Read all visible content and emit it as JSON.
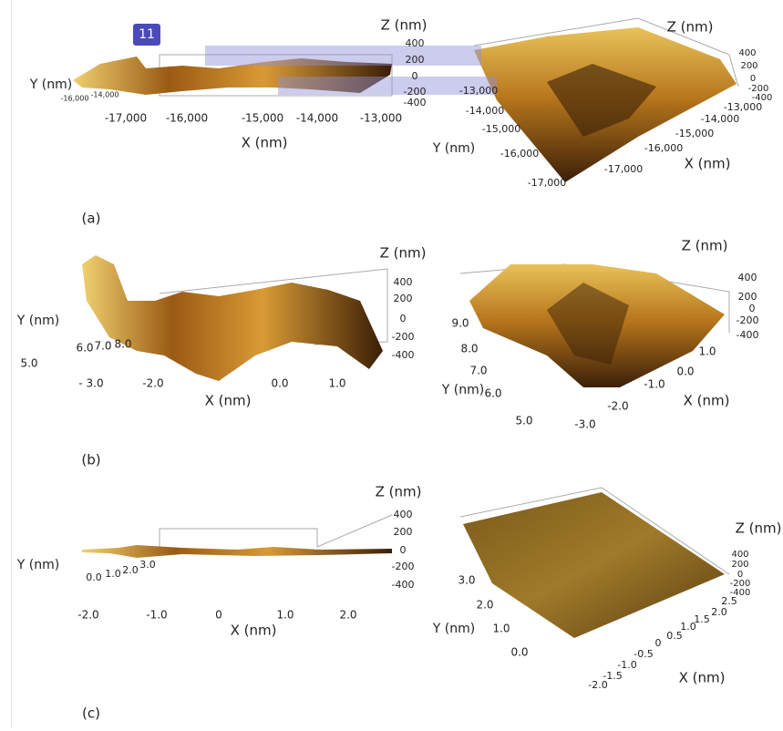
{
  "badge": "11",
  "panels": [
    {
      "label": "(a)",
      "plots": [
        {
          "z_title": "Z (nm)",
          "z_ticks": [
            "400",
            "200",
            "0",
            "-200",
            "-400"
          ],
          "x_title": "X (nm)",
          "x_ticks": [
            "-17,000",
            "-16,000",
            "-15,000",
            "-14,000",
            "-13,000"
          ],
          "y_title": "Y (nm)",
          "y_ticks": [
            "-16,000",
            "-14,000"
          ]
        },
        {
          "z_title": "Z (nm)",
          "z_ticks": [
            "400",
            "200",
            "0",
            "-200",
            "-400"
          ],
          "x_title": "X (nm)",
          "x_ticks": [
            "-13,000",
            "-14,000",
            "-15,000",
            "-16,000",
            "-17,000"
          ],
          "y_title": "Y (nm)",
          "y_ticks": [
            "-13,000",
            "-14,000",
            "-15,000",
            "-16,000",
            "-17,000"
          ]
        }
      ]
    },
    {
      "label": "(b)",
      "plots": [
        {
          "z_title": "Z (nm)",
          "z_ticks": [
            "400",
            "200",
            "0",
            "-200",
            "-400"
          ],
          "x_title": "X (nm)",
          "x_ticks": [
            "- 3.0",
            "-2.0",
            "0.0",
            "1.0"
          ],
          "y_title": "Y (nm)",
          "y_ticks": [
            "5.0",
            "6.0",
            "7.0",
            "8.0"
          ]
        },
        {
          "z_title": "Z (nm)",
          "z_ticks": [
            "400",
            "200",
            "0",
            "-200",
            "-400"
          ],
          "x_title": "X (nm)",
          "x_ticks": [
            "1.0",
            "0.0",
            "-1.0",
            "-2.0",
            "-3.0"
          ],
          "y_title": "Y (nm)",
          "y_ticks": [
            "9.0",
            "8.0",
            "7.0",
            "6.0",
            "5.0"
          ]
        }
      ]
    },
    {
      "label": "(c)",
      "plots": [
        {
          "z_title": "Z (nm)",
          "z_ticks": [
            "400",
            "200",
            "0",
            "-200",
            "-400"
          ],
          "x_title": "X (nm)",
          "x_ticks": [
            "-2.0",
            "-1.0",
            "0",
            "1.0",
            "2.0"
          ],
          "y_title": "Y (nm)",
          "y_ticks": [
            "0.0",
            "1.0",
            "2.0",
            "3.0"
          ]
        },
        {
          "z_title": "Z (nm)",
          "z_ticks": [
            "400",
            "200",
            "0",
            "-200",
            "-400"
          ],
          "x_title": "X (nm)",
          "x_ticks": [
            "2.5",
            "2.0",
            "1.5",
            "1.0",
            "0.5",
            "0",
            "-0.5",
            "-1.0",
            "-1.5",
            "-2.0"
          ],
          "y_title": "Y (nm)",
          "y_ticks": [
            "3.0",
            "2.0",
            "1.0",
            "0.0"
          ]
        }
      ]
    }
  ]
}
